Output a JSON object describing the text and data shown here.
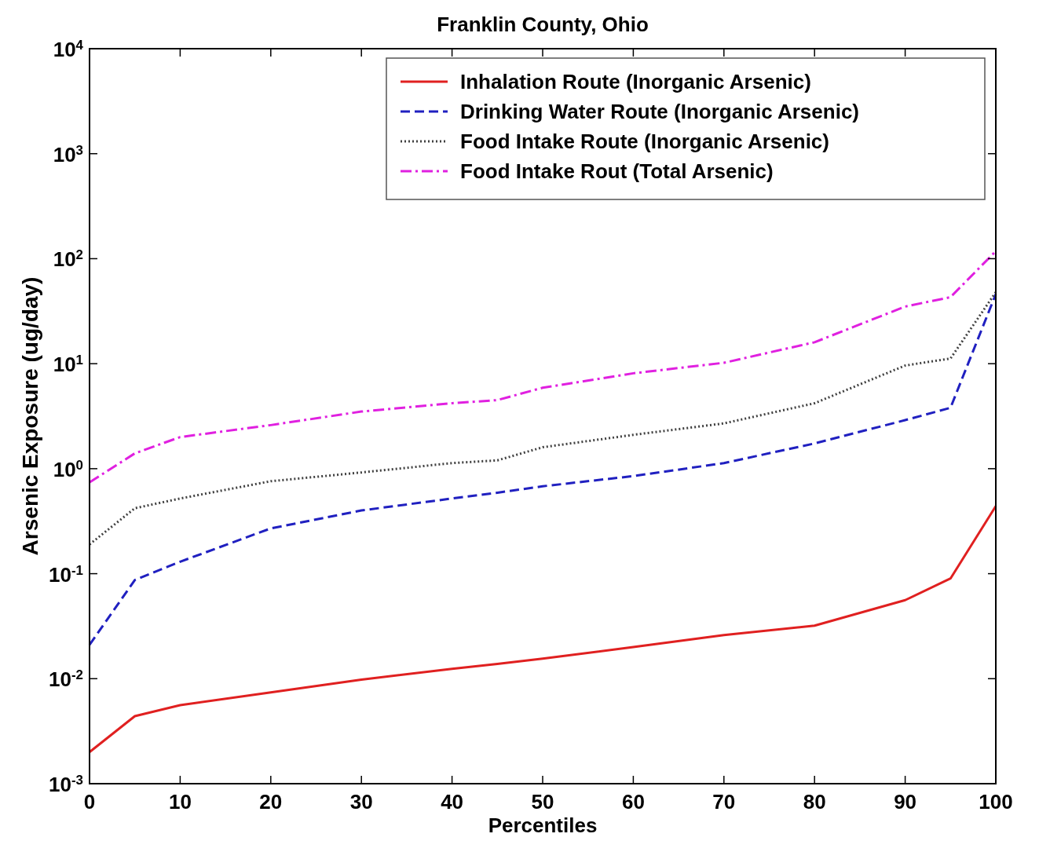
{
  "chart_data": {
    "type": "line",
    "title": "Franklin County, Ohio",
    "xlabel": "Percentiles",
    "ylabel": "Arsenic Exposure (ug/day)",
    "log": "y",
    "xlim": [
      0,
      100
    ],
    "xticks": [
      0,
      10,
      20,
      30,
      40,
      50,
      60,
      70,
      80,
      90,
      100
    ],
    "ylim": [
      0.001,
      10000
    ],
    "yticks": [
      {
        "value": 0.001,
        "label": "10$^{-3}$"
      },
      {
        "value": 0.01,
        "label": "10$^{-2}$"
      },
      {
        "value": 0.1,
        "label": "10$^{-1}$"
      },
      {
        "value": 1,
        "label": "10$^{0}$"
      },
      {
        "value": 10,
        "label": "10$^{1}$"
      },
      {
        "value": 100,
        "label": "10$^{2}$"
      },
      {
        "value": 1000,
        "label": "10$^{3}$"
      },
      {
        "value": 10000,
        "label": "10$^{4}$"
      }
    ],
    "grid": false,
    "legend": "top right",
    "x": [
      0,
      5,
      10,
      20,
      30,
      40,
      45,
      50,
      60,
      70,
      80,
      90,
      95,
      100
    ],
    "series": [
      {
        "name": "Inhalation Route (Inorganic Arsenic)",
        "color": "#e02020",
        "line_style": "solid",
        "values": [
          0.002,
          0.0044,
          0.0056,
          0.0074,
          0.0098,
          0.0124,
          0.0138,
          0.0155,
          0.02,
          0.026,
          0.032,
          0.056,
          0.09,
          0.44
        ]
      },
      {
        "name": "Drinking Water Route (Inorganic Arsenic)",
        "color": "#2020c0",
        "line_style": "dashed",
        "values": [
          0.021,
          0.087,
          0.13,
          0.27,
          0.4,
          0.52,
          0.59,
          0.68,
          0.85,
          1.13,
          1.74,
          2.9,
          3.8,
          46
        ]
      },
      {
        "name": "Food Intake Route (Inorganic Arsenic)",
        "color": "#404040",
        "line_style": "dotted",
        "values": [
          0.19,
          0.42,
          0.52,
          0.76,
          0.92,
          1.13,
          1.2,
          1.6,
          2.1,
          2.7,
          4.2,
          9.6,
          11.2,
          48
        ]
      },
      {
        "name": "Food Intake Rout (Total Arsenic)",
        "color": "#e020e0",
        "line_style": "dashdot",
        "values": [
          0.74,
          1.4,
          2.0,
          2.6,
          3.5,
          4.2,
          4.5,
          5.9,
          8.1,
          10.2,
          16,
          35,
          43,
          118
        ]
      }
    ]
  }
}
